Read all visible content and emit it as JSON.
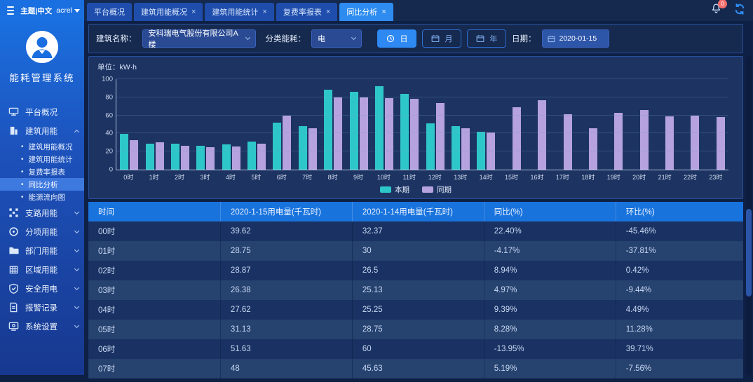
{
  "topbar": {
    "theme_lang": "主题|中文",
    "user": "acrel",
    "close_glyph": "×",
    "tabs": [
      {
        "label": "平台概况",
        "closable": false,
        "active": false
      },
      {
        "label": "建筑用能概况",
        "closable": true,
        "active": false
      },
      {
        "label": "建筑用能统计",
        "closable": true,
        "active": false
      },
      {
        "label": "复费率报表",
        "closable": true,
        "active": false
      },
      {
        "label": "同比分析",
        "closable": true,
        "active": true
      }
    ],
    "notification_badge": "0"
  },
  "sidebar": {
    "system_title": "能耗管理系统",
    "bullet_glyph": "•",
    "menu": [
      {
        "label": "平台概况",
        "icon": "monitor",
        "expandable": false
      },
      {
        "label": "建筑用能",
        "icon": "building",
        "expandable": true,
        "expanded": true,
        "children": [
          {
            "label": "建筑用能概况",
            "active": false
          },
          {
            "label": "建筑用能统计",
            "active": false
          },
          {
            "label": "复费率报表",
            "active": false
          },
          {
            "label": "同比分析",
            "active": true
          },
          {
            "label": "能源流向图",
            "active": false
          }
        ]
      },
      {
        "label": "支路用能",
        "icon": "branch",
        "expandable": true,
        "expanded": false
      },
      {
        "label": "分项用能",
        "icon": "category",
        "expandable": true,
        "expanded": false
      },
      {
        "label": "部门用能",
        "icon": "department",
        "expandable": true,
        "expanded": false
      },
      {
        "label": "区域用能",
        "icon": "region",
        "expandable": true,
        "expanded": false
      },
      {
        "label": "安全用电",
        "icon": "safety",
        "expandable": true,
        "expanded": false
      },
      {
        "label": "报警记录",
        "icon": "alarm",
        "expandable": true,
        "expanded": false
      },
      {
        "label": "系统设置",
        "icon": "settings",
        "expandable": true,
        "expanded": false
      }
    ]
  },
  "filters": {
    "building_label": "建筑名称：",
    "building_value": "安科瑞电气股份有限公司A楼",
    "energy_label": "分类能耗：",
    "energy_value": "电",
    "period_buttons": [
      {
        "label": "日",
        "icon": "clock",
        "active": true
      },
      {
        "label": "月",
        "icon": "calendar",
        "active": false
      },
      {
        "label": "年",
        "icon": "calendar",
        "active": false
      }
    ],
    "date_label": "日期：",
    "date_value": "2020-01-15"
  },
  "chart_data": {
    "type": "bar",
    "unit_label": "单位：kW·h",
    "title": "",
    "xlabel": "",
    "ylabel": "kW·h",
    "ylim": [
      0,
      100
    ],
    "yticks": [
      0,
      20,
      40,
      60,
      80,
      100
    ],
    "grid": true,
    "legend_position": "bottom",
    "categories": [
      "0时",
      "1时",
      "2时",
      "3时",
      "4时",
      "5时",
      "6时",
      "7时",
      "8时",
      "9时",
      "10时",
      "11时",
      "12时",
      "13时",
      "14时",
      "15时",
      "16时",
      "17时",
      "18时",
      "19时",
      "20时",
      "21时",
      "22时",
      "23时"
    ],
    "series": [
      {
        "name": "本期",
        "color": "#2ec7c9",
        "values": [
          39.62,
          28.75,
          28.87,
          26.38,
          27.62,
          31.13,
          51.63,
          48,
          88,
          86,
          92,
          84,
          51,
          48,
          42,
          null,
          null,
          null,
          null,
          null,
          null,
          null,
          null,
          null
        ]
      },
      {
        "name": "同期",
        "color": "#b6a2de",
        "values": [
          32.37,
          30,
          26.5,
          25.13,
          25.25,
          28.75,
          60,
          45.63,
          80,
          80,
          79,
          78,
          74,
          46,
          41,
          69,
          77,
          61,
          46,
          63,
          66,
          59,
          60,
          58
        ]
      }
    ]
  },
  "table": {
    "columns": [
      "时间",
      "2020-1-15用电量(千瓦时)",
      "2020-1-14用电量(千瓦时)",
      "同比(%)",
      "环比(%)"
    ],
    "rows": [
      [
        "00时",
        "39.62",
        "32.37",
        "22.40%",
        "-45.46%"
      ],
      [
        "01时",
        "28.75",
        "30",
        "-4.17%",
        "-37.81%"
      ],
      [
        "02时",
        "28.87",
        "26.5",
        "8.94%",
        "0.42%"
      ],
      [
        "03时",
        "26.38",
        "25.13",
        "4.97%",
        "-9.44%"
      ],
      [
        "04时",
        "27.62",
        "25.25",
        "9.39%",
        "4.49%"
      ],
      [
        "05时",
        "31.13",
        "28.75",
        "8.28%",
        "11.28%"
      ],
      [
        "06时",
        "51.63",
        "60",
        "-13.95%",
        "39.71%"
      ],
      [
        "07时",
        "48",
        "45.63",
        "5.19%",
        "-7.56%"
      ]
    ]
  },
  "colors": {
    "accent": "#2e8cf0",
    "series_current": "#2ec7c9",
    "series_previous": "#b6a2de",
    "table_header": "#1973dd",
    "sidebar_top": "#1a6fdf",
    "badge_red": "#f26d6d"
  }
}
